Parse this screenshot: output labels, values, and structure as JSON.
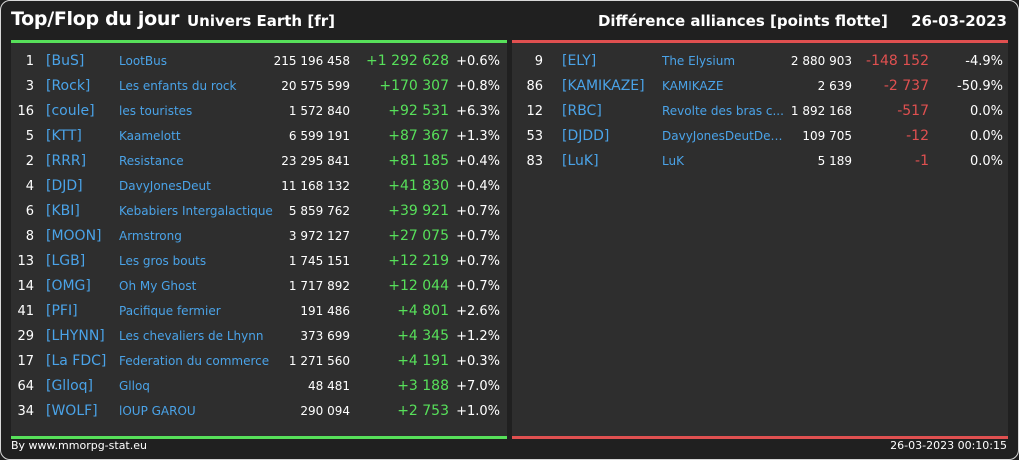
{
  "header": {
    "title": "Top/Flop du jour",
    "universe": "Univers Earth [fr]",
    "subtitle": "Différence alliances [points flotte]",
    "date": "26-03-2023"
  },
  "colors": {
    "positive": "#57e05a",
    "negative": "#e05050",
    "tag": "#4aa3e8"
  },
  "top": [
    {
      "rank": "1",
      "tag": "[BuS]",
      "name": "LootBus",
      "points": "215 196 458",
      "diff": "+1 292 628",
      "pct": "+0.6%"
    },
    {
      "rank": "3",
      "tag": "[Rock]",
      "name": "Les enfants du rock",
      "points": "20 575 599",
      "diff": "+170 307",
      "pct": "+0.8%"
    },
    {
      "rank": "16",
      "tag": "[coule]",
      "name": "les touristes",
      "points": "1 572 840",
      "diff": "+92 531",
      "pct": "+6.3%"
    },
    {
      "rank": "5",
      "tag": "[KTT]",
      "name": "Kaamelott",
      "points": "6 599 191",
      "diff": "+87 367",
      "pct": "+1.3%"
    },
    {
      "rank": "2",
      "tag": "[RRR]",
      "name": "Resistance",
      "points": "23 295 841",
      "diff": "+81 185",
      "pct": "+0.4%"
    },
    {
      "rank": "4",
      "tag": "[DJD]",
      "name": "DavyJonesDeut",
      "points": "11 168 132",
      "diff": "+41 830",
      "pct": "+0.4%"
    },
    {
      "rank": "6",
      "tag": "[KBI]",
      "name": "Kebabiers Intergalactique",
      "points": "5 859 762",
      "diff": "+39 921",
      "pct": "+0.7%"
    },
    {
      "rank": "8",
      "tag": "[MOON]",
      "name": "Armstrong",
      "points": "3 972 127",
      "diff": "+27 075",
      "pct": "+0.7%"
    },
    {
      "rank": "13",
      "tag": "[LGB]",
      "name": "Les gros bouts",
      "points": "1 745 151",
      "diff": "+12 219",
      "pct": "+0.7%"
    },
    {
      "rank": "14",
      "tag": "[OMG]",
      "name": "Oh My Ghost",
      "points": "1 717 892",
      "diff": "+12 044",
      "pct": "+0.7%"
    },
    {
      "rank": "41",
      "tag": "[PFI]",
      "name": "Pacifique fermier",
      "points": "191 486",
      "diff": "+4 801",
      "pct": "+2.6%"
    },
    {
      "rank": "29",
      "tag": "[LHYNN]",
      "name": "Les chevaliers de Lhynn",
      "points": "373 699",
      "diff": "+4 345",
      "pct": "+1.2%"
    },
    {
      "rank": "17",
      "tag": "[La FDC]",
      "name": "Federation du commerce",
      "points": "1 271 560",
      "diff": "+4 191",
      "pct": "+0.3%"
    },
    {
      "rank": "64",
      "tag": "[Glloq]",
      "name": "Glloq",
      "points": "48 481",
      "diff": "+3 188",
      "pct": "+7.0%"
    },
    {
      "rank": "34",
      "tag": "[WOLF]",
      "name": "lOUP GAROU",
      "points": "290 094",
      "diff": "+2 753",
      "pct": "+1.0%"
    }
  ],
  "flop": [
    {
      "rank": "9",
      "tag": "[ELY]",
      "name": "The Elysium",
      "points": "2 880 903",
      "diff": "-148 152",
      "pct": "-4.9%"
    },
    {
      "rank": "86",
      "tag": "[KAMIKAZE]",
      "name": "KAMIKAZE",
      "points": "2 639",
      "diff": "-2 737",
      "pct": "-50.9%"
    },
    {
      "rank": "12",
      "tag": "[RBC]",
      "name": "Revolte des bras c...",
      "points": "1 892 168",
      "diff": "-517",
      "pct": "0.0%"
    },
    {
      "rank": "53",
      "tag": "[DJDD]",
      "name": "DavyJonesDeutDea...",
      "points": "109 705",
      "diff": "-12",
      "pct": "0.0%"
    },
    {
      "rank": "83",
      "tag": "[LuK]",
      "name": "LuK",
      "points": "5 189",
      "diff": "-1",
      "pct": "0.0%"
    }
  ],
  "footer": {
    "source": "By www.mmorpg-stat.eu",
    "timestamp": "26-03-2023 00:10:15"
  }
}
